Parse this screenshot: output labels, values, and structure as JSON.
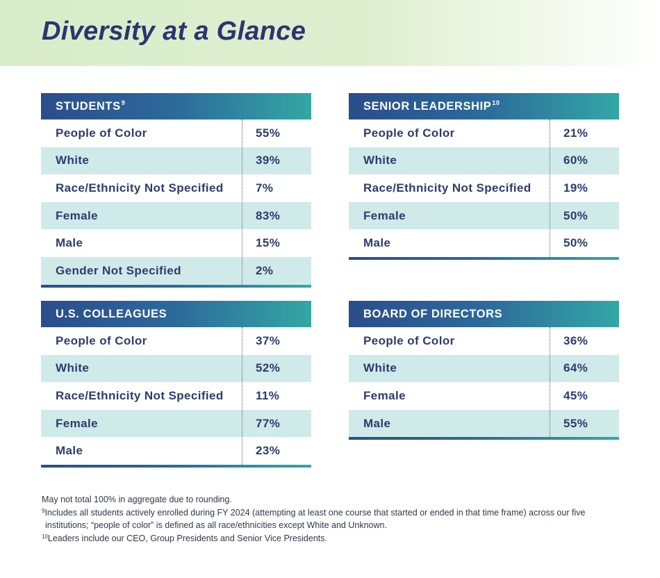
{
  "page": {
    "title": "Diversity at a Glance"
  },
  "tables": {
    "students": {
      "title": "STUDENTS",
      "note_ref": "9",
      "rows": [
        {
          "label": "People of Color",
          "value": "55%"
        },
        {
          "label": "White",
          "value": "39%"
        },
        {
          "label": "Race/Ethnicity Not Specified",
          "value": "7%"
        },
        {
          "label": "Female",
          "value": "83%"
        },
        {
          "label": "Male",
          "value": "15%"
        },
        {
          "label": "Gender Not Specified",
          "value": "2%"
        }
      ]
    },
    "senior_leadership": {
      "title": "SENIOR LEADERSHIP",
      "note_ref": "10",
      "rows": [
        {
          "label": "People of Color",
          "value": "21%"
        },
        {
          "label": "White",
          "value": "60%"
        },
        {
          "label": "Race/Ethnicity Not Specified",
          "value": "19%"
        },
        {
          "label": "Female",
          "value": "50%"
        },
        {
          "label": "Male",
          "value": "50%"
        }
      ]
    },
    "us_colleagues": {
      "title": "U.S. COLLEAGUES",
      "rows": [
        {
          "label": "People of Color",
          "value": "37%"
        },
        {
          "label": "White",
          "value": "52%"
        },
        {
          "label": "Race/Ethnicity Not Specified",
          "value": "11%"
        },
        {
          "label": "Female",
          "value": "77%"
        },
        {
          "label": "Male",
          "value": "23%"
        }
      ]
    },
    "board_of_directors": {
      "title": "BOARD OF DIRECTORS",
      "rows": [
        {
          "label": "People of Color",
          "value": "36%"
        },
        {
          "label": "White",
          "value": "64%"
        },
        {
          "label": "Female",
          "value": "45%"
        },
        {
          "label": "Male",
          "value": "55%"
        }
      ]
    }
  },
  "notes": {
    "rounding": "May not total 100% in aggregate due to rounding.",
    "footnote_9_marker": "9",
    "footnote_9": "Includes all students actively enrolled during FY 2024 (attempting at least one course that started or ended in that time frame) across our five institutions; “people of color” is defined as all race/ethnicities except White and Unknown.",
    "footnote_10_marker": "10",
    "footnote_10": "Leaders include our CEO, Group Presidents and Senior Vice Presidents."
  },
  "colors": {
    "title_text": "#2c3470",
    "header_gradient_start": "#2b4d8a",
    "header_gradient_end": "#33a7a5",
    "row_shade": "#cfeae9",
    "banner_green": "#d8ecc9"
  }
}
